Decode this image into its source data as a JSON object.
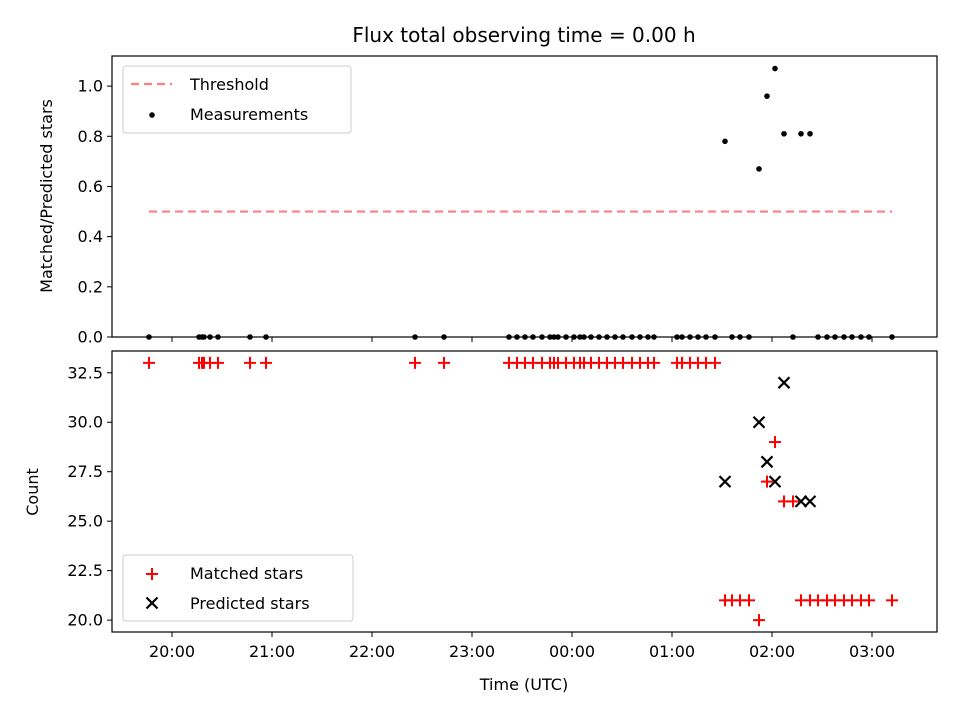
{
  "chart_data": [
    {
      "type": "scatter",
      "title": "Flux total observing time = 0.00 h",
      "xlabel": "",
      "ylabel": "Matched/Predicted stars",
      "ylim": [
        0.0,
        1.12
      ],
      "xlim_hours": [
        19.4,
        27.65
      ],
      "yticks": [
        "0.0",
        "0.2",
        "0.4",
        "0.6",
        "0.8",
        "1.0"
      ],
      "legend_position": "upper left",
      "threshold": {
        "name": "Threshold",
        "value": 0.5,
        "x_start": 19.77,
        "x_end": 27.2,
        "color": "#ff7f7f"
      },
      "series": [
        {
          "name": "Measurements",
          "color": "#000000",
          "x": [
            19.77,
            20.27,
            20.3,
            20.32,
            20.38,
            20.46,
            20.78,
            20.94,
            22.43,
            22.72,
            23.37,
            23.45,
            23.53,
            23.61,
            23.7,
            23.78,
            23.82,
            23.86,
            23.94,
            24.02,
            24.08,
            24.12,
            24.19,
            24.27,
            24.35,
            24.43,
            24.51,
            24.6,
            24.68,
            24.76,
            24.82,
            25.05,
            25.1,
            25.18,
            25.26,
            25.34,
            25.43,
            25.6,
            25.68,
            25.77,
            25.53,
            25.87,
            25.95,
            26.03,
            26.12,
            26.21,
            26.29,
            26.38,
            26.46,
            26.55,
            26.63,
            26.72,
            26.8,
            26.89,
            26.97,
            27.2
          ],
          "y": [
            0,
            0,
            0,
            0,
            0,
            0,
            0,
            0,
            0,
            0,
            0,
            0,
            0,
            0,
            0,
            0,
            0,
            0,
            0,
            0,
            0,
            0,
            0,
            0,
            0,
            0,
            0,
            0,
            0,
            0,
            0,
            0,
            0,
            0,
            0,
            0,
            0,
            0,
            0,
            0,
            0.78,
            0.67,
            0.96,
            1.07,
            0.81,
            0,
            0.81,
            0.81,
            0,
            0,
            0,
            0,
            0,
            0,
            0,
            0
          ]
        }
      ]
    },
    {
      "type": "scatter",
      "title": "",
      "xlabel": "Time (UTC)",
      "ylabel": "Count",
      "ylim": [
        19.4,
        33.6
      ],
      "xlim_hours": [
        19.4,
        27.65
      ],
      "yticks": [
        "20.0",
        "22.5",
        "25.0",
        "27.5",
        "30.0",
        "32.5"
      ],
      "xticks": [
        "20:00",
        "21:00",
        "22:00",
        "23:00",
        "00:00",
        "01:00",
        "02:00",
        "03:00"
      ],
      "legend_position": "lower left",
      "series": [
        {
          "name": "Matched stars",
          "marker": "plus",
          "color": "#ff0000",
          "x": [
            19.77,
            20.27,
            20.3,
            20.32,
            20.38,
            20.46,
            20.78,
            20.94,
            22.43,
            22.72,
            23.37,
            23.45,
            23.53,
            23.61,
            23.7,
            23.78,
            23.82,
            23.86,
            23.94,
            24.02,
            24.08,
            24.12,
            24.19,
            24.27,
            24.35,
            24.43,
            24.51,
            24.6,
            24.68,
            24.76,
            24.82,
            25.05,
            25.1,
            25.18,
            25.26,
            25.34,
            25.43,
            25.53,
            25.6,
            25.68,
            25.77,
            25.87,
            25.95,
            26.03,
            26.12,
            26.21,
            26.29,
            26.38,
            26.46,
            26.55,
            26.63,
            26.72,
            26.8,
            26.89,
            26.97,
            27.2
          ],
          "y": [
            33,
            33,
            33,
            33,
            33,
            33,
            33,
            33,
            33,
            33,
            33,
            33,
            33,
            33,
            33,
            33,
            33,
            33,
            33,
            33,
            33,
            33,
            33,
            33,
            33,
            33,
            33,
            33,
            33,
            33,
            33,
            33,
            33,
            33,
            33,
            33,
            33,
            21,
            21,
            21,
            21,
            20,
            27,
            29,
            26,
            26,
            21,
            21,
            21,
            21,
            21,
            21,
            21,
            21,
            21,
            21
          ]
        },
        {
          "name": "Predicted stars",
          "marker": "x",
          "color": "#000000",
          "x": [
            25.53,
            25.87,
            25.95,
            26.03,
            26.12,
            26.29,
            26.38
          ],
          "y": [
            27,
            30,
            28,
            27,
            32,
            26,
            26
          ]
        }
      ]
    }
  ]
}
